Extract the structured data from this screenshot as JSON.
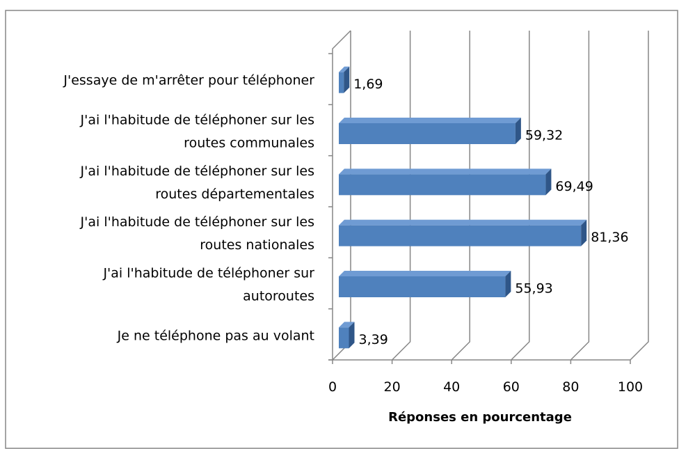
{
  "chart_data": {
    "type": "bar",
    "orientation": "horizontal",
    "style": "3d",
    "categories": [
      "J'essaye de m'arrêter pour téléphoner",
      "J'ai l'habitude de téléphoner sur les routes communales",
      "J'ai l'habitude de téléphoner sur les routes départementales",
      "J'ai l'habitude de téléphoner sur les routes nationales",
      "J'ai l'habitude de téléphoner sur autoroutes",
      "Je ne téléphone pas au volant"
    ],
    "values": [
      1.69,
      59.32,
      69.49,
      81.36,
      55.93,
      3.39
    ],
    "value_labels": [
      "1,69",
      "59,32",
      "69,49",
      "81,36",
      "55,93",
      "3,39"
    ],
    "color": "#4f81bd",
    "xlabel": "Réponses en pourcentage",
    "xlim": [
      0,
      100
    ],
    "xticks": [
      0,
      20,
      40,
      60,
      80,
      100
    ],
    "grid": true
  }
}
